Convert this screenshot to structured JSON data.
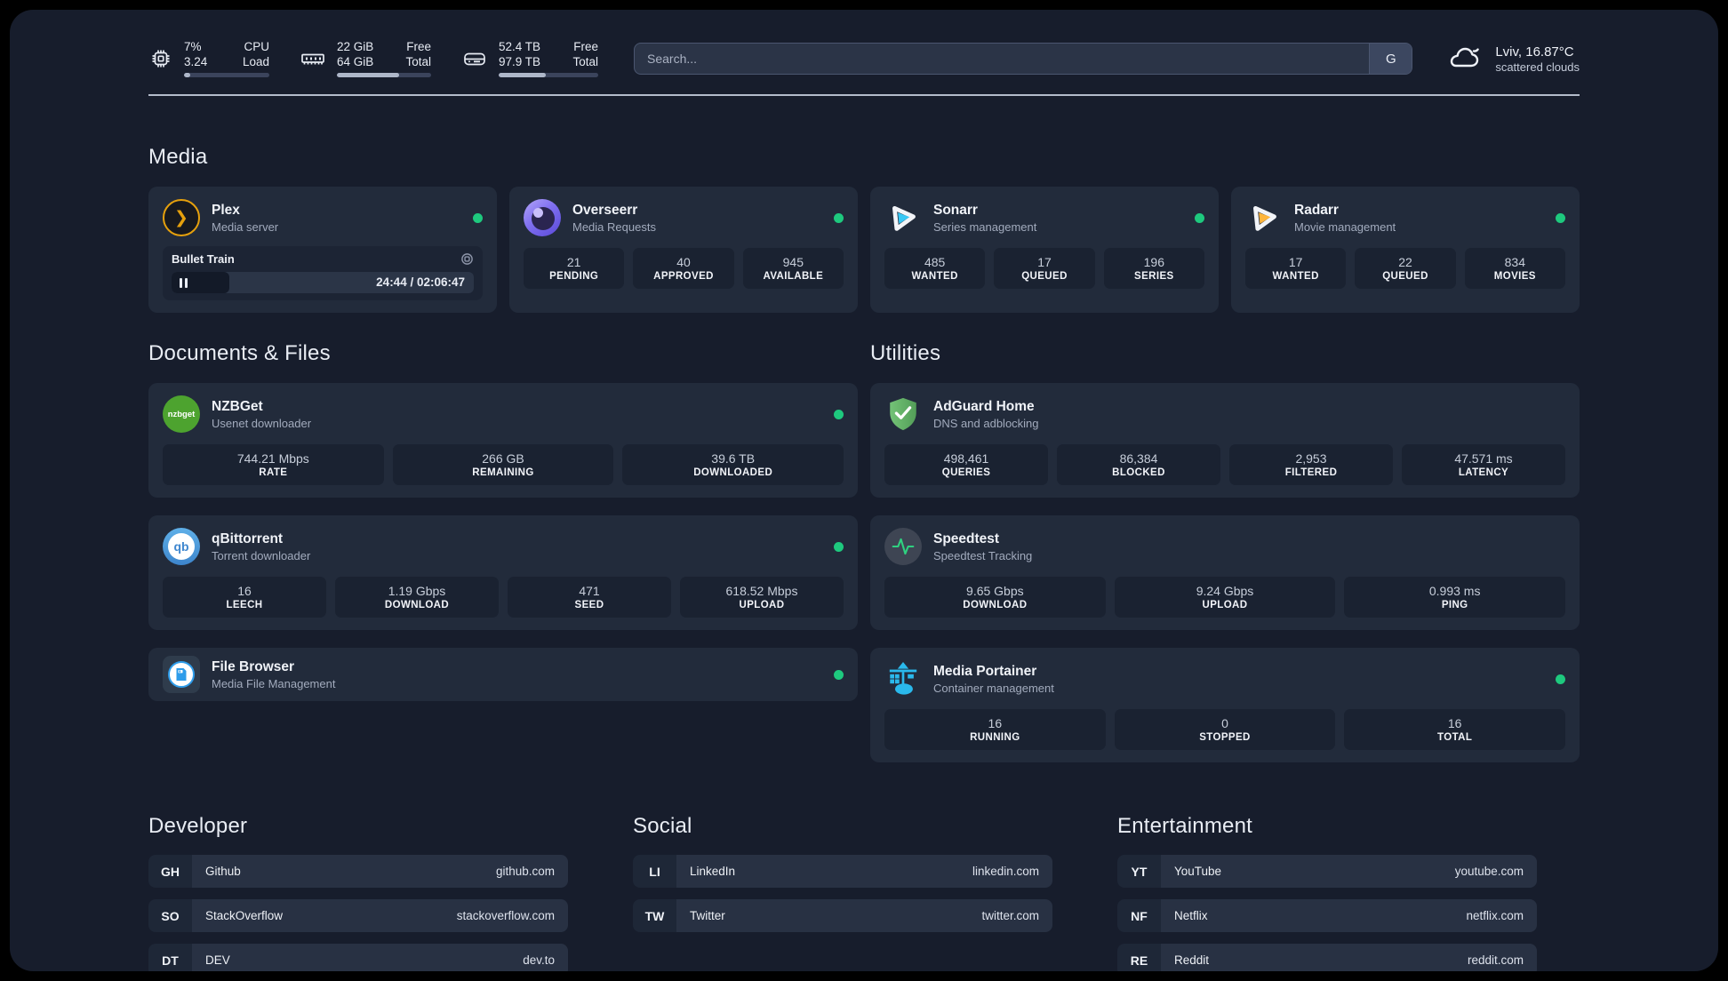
{
  "colors": {
    "page_bg": "#171d2c",
    "card_bg": "#222b3b",
    "tile_bg": "#1a2231",
    "status_green": "#1ec97e",
    "plex_amber": "#e5a00d",
    "sonarr_cyan": "#38c8f5",
    "radarr_amber": "#ffb53c",
    "nzbget_green": "#4da32f",
    "qbittorrent_blue": "#3f87cf",
    "adguard_green": "#67b969",
    "speedtest_green": "#2fd180",
    "portainer_blue": "#2ab9ec"
  },
  "header": {
    "cpu": {
      "value1": "7%",
      "value2": "3.24",
      "label1": "CPU",
      "label2": "Load",
      "progress_pct": 7
    },
    "ram": {
      "value1": "22 GiB",
      "value2": "64 GiB",
      "label1": "Free",
      "label2": "Total",
      "progress_pct": 66
    },
    "disk": {
      "value1": "52.4 TB",
      "value2": "97.9 TB",
      "label1": "Free",
      "label2": "Total",
      "progress_pct": 47
    },
    "search": {
      "placeholder": "Search...",
      "button_label": "G"
    },
    "weather": {
      "summary": "Lviv, 16.87°C",
      "condition": "scattered clouds"
    }
  },
  "media": {
    "title": "Media",
    "plex": {
      "name": "Plex",
      "description": "Media server",
      "player": {
        "track": "Bullet Train",
        "time": "24:44 / 02:06:47",
        "progress_pct": 19
      }
    },
    "overseerr": {
      "name": "Overseerr",
      "description": "Media Requests",
      "stats": [
        {
          "value": "21",
          "label": "PENDING"
        },
        {
          "value": "40",
          "label": "APPROVED"
        },
        {
          "value": "945",
          "label": "AVAILABLE"
        }
      ]
    },
    "sonarr": {
      "name": "Sonarr",
      "description": "Series management",
      "stats": [
        {
          "value": "485",
          "label": "WANTED"
        },
        {
          "value": "17",
          "label": "QUEUED"
        },
        {
          "value": "196",
          "label": "SERIES"
        }
      ]
    },
    "radarr": {
      "name": "Radarr",
      "description": "Movie management",
      "stats": [
        {
          "value": "17",
          "label": "WANTED"
        },
        {
          "value": "22",
          "label": "QUEUED"
        },
        {
          "value": "834",
          "label": "MOVIES"
        }
      ]
    }
  },
  "documents": {
    "title": "Documents & Files",
    "nzbget": {
      "name": "NZBGet",
      "description": "Usenet downloader",
      "icon_text": "nzbget",
      "stats": [
        {
          "value": "744.21 Mbps",
          "label": "RATE"
        },
        {
          "value": "266 GB",
          "label": "REMAINING"
        },
        {
          "value": "39.6 TB",
          "label": "DOWNLOADED"
        }
      ]
    },
    "qbittorrent": {
      "name": "qBittorrent",
      "description": "Torrent downloader",
      "icon_text": "qb",
      "stats": [
        {
          "value": "16",
          "label": "LEECH"
        },
        {
          "value": "1.19 Gbps",
          "label": "DOWNLOAD"
        },
        {
          "value": "471",
          "label": "SEED"
        },
        {
          "value": "618.52 Mbps",
          "label": "UPLOAD"
        }
      ]
    },
    "filebrowser": {
      "name": "File Browser",
      "description": "Media File Management"
    }
  },
  "utilities": {
    "title": "Utilities",
    "adguard": {
      "name": "AdGuard Home",
      "description": "DNS and adblocking",
      "stats": [
        {
          "value": "498,461",
          "label": "QUERIES"
        },
        {
          "value": "86,384",
          "label": "BLOCKED"
        },
        {
          "value": "2,953",
          "label": "FILTERED"
        },
        {
          "value": "47.571 ms",
          "label": "LATENCY"
        }
      ]
    },
    "speedtest": {
      "name": "Speedtest",
      "description": "Speedtest Tracking",
      "stats": [
        {
          "value": "9.65 Gbps",
          "label": "DOWNLOAD"
        },
        {
          "value": "9.24 Gbps",
          "label": "UPLOAD"
        },
        {
          "value": "0.993 ms",
          "label": "PING"
        }
      ]
    },
    "portainer": {
      "name": "Media Portainer",
      "description": "Container management",
      "stats": [
        {
          "value": "16",
          "label": "RUNNING"
        },
        {
          "value": "0",
          "label": "STOPPED"
        },
        {
          "value": "16",
          "label": "TOTAL"
        }
      ]
    }
  },
  "bookmarks": {
    "developer": {
      "title": "Developer",
      "links": [
        {
          "abbr": "GH",
          "name": "Github",
          "url": "github.com"
        },
        {
          "abbr": "SO",
          "name": "StackOverflow",
          "url": "stackoverflow.com"
        },
        {
          "abbr": "DT",
          "name": "DEV",
          "url": "dev.to"
        }
      ]
    },
    "social": {
      "title": "Social",
      "links": [
        {
          "abbr": "LI",
          "name": "LinkedIn",
          "url": "linkedin.com"
        },
        {
          "abbr": "TW",
          "name": "Twitter",
          "url": "twitter.com"
        }
      ]
    },
    "entertainment": {
      "title": "Entertainment",
      "links": [
        {
          "abbr": "YT",
          "name": "YouTube",
          "url": "youtube.com"
        },
        {
          "abbr": "NF",
          "name": "Netflix",
          "url": "netflix.com"
        },
        {
          "abbr": "RE",
          "name": "Reddit",
          "url": "reddit.com"
        }
      ]
    }
  }
}
